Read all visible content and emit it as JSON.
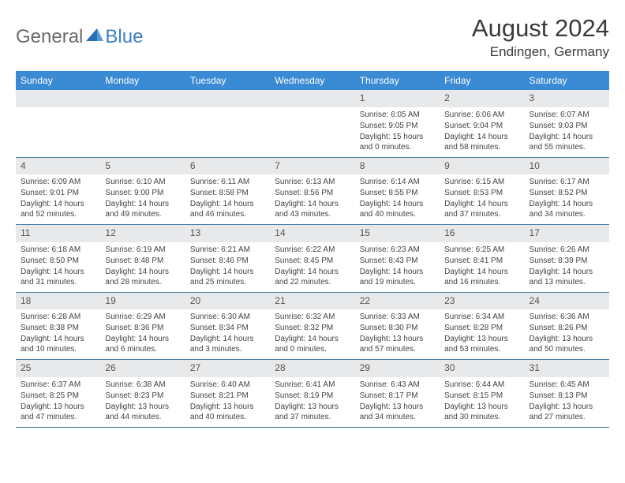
{
  "logo": {
    "part1": "General",
    "part2": "Blue"
  },
  "title": "August 2024",
  "location": "Endingen, Germany",
  "daynames": [
    "Sunday",
    "Monday",
    "Tuesday",
    "Wednesday",
    "Thursday",
    "Friday",
    "Saturday"
  ],
  "colors": {
    "header_bg": "#3b8bd4",
    "daynum_bg": "#e8e9ea",
    "border": "#4a7da8",
    "logo_blue": "#3b7fc4",
    "logo_gray": "#6b6b6b"
  },
  "weeks": [
    [
      {
        "n": "",
        "sunrise": "",
        "sunset": "",
        "daylight": ""
      },
      {
        "n": "",
        "sunrise": "",
        "sunset": "",
        "daylight": ""
      },
      {
        "n": "",
        "sunrise": "",
        "sunset": "",
        "daylight": ""
      },
      {
        "n": "",
        "sunrise": "",
        "sunset": "",
        "daylight": ""
      },
      {
        "n": "1",
        "sunrise": "Sunrise: 6:05 AM",
        "sunset": "Sunset: 9:05 PM",
        "daylight": "Daylight: 15 hours and 0 minutes."
      },
      {
        "n": "2",
        "sunrise": "Sunrise: 6:06 AM",
        "sunset": "Sunset: 9:04 PM",
        "daylight": "Daylight: 14 hours and 58 minutes."
      },
      {
        "n": "3",
        "sunrise": "Sunrise: 6:07 AM",
        "sunset": "Sunset: 9:03 PM",
        "daylight": "Daylight: 14 hours and 55 minutes."
      }
    ],
    [
      {
        "n": "4",
        "sunrise": "Sunrise: 6:09 AM",
        "sunset": "Sunset: 9:01 PM",
        "daylight": "Daylight: 14 hours and 52 minutes."
      },
      {
        "n": "5",
        "sunrise": "Sunrise: 6:10 AM",
        "sunset": "Sunset: 9:00 PM",
        "daylight": "Daylight: 14 hours and 49 minutes."
      },
      {
        "n": "6",
        "sunrise": "Sunrise: 6:11 AM",
        "sunset": "Sunset: 8:58 PM",
        "daylight": "Daylight: 14 hours and 46 minutes."
      },
      {
        "n": "7",
        "sunrise": "Sunrise: 6:13 AM",
        "sunset": "Sunset: 8:56 PM",
        "daylight": "Daylight: 14 hours and 43 minutes."
      },
      {
        "n": "8",
        "sunrise": "Sunrise: 6:14 AM",
        "sunset": "Sunset: 8:55 PM",
        "daylight": "Daylight: 14 hours and 40 minutes."
      },
      {
        "n": "9",
        "sunrise": "Sunrise: 6:15 AM",
        "sunset": "Sunset: 8:53 PM",
        "daylight": "Daylight: 14 hours and 37 minutes."
      },
      {
        "n": "10",
        "sunrise": "Sunrise: 6:17 AM",
        "sunset": "Sunset: 8:52 PM",
        "daylight": "Daylight: 14 hours and 34 minutes."
      }
    ],
    [
      {
        "n": "11",
        "sunrise": "Sunrise: 6:18 AM",
        "sunset": "Sunset: 8:50 PM",
        "daylight": "Daylight: 14 hours and 31 minutes."
      },
      {
        "n": "12",
        "sunrise": "Sunrise: 6:19 AM",
        "sunset": "Sunset: 8:48 PM",
        "daylight": "Daylight: 14 hours and 28 minutes."
      },
      {
        "n": "13",
        "sunrise": "Sunrise: 6:21 AM",
        "sunset": "Sunset: 8:46 PM",
        "daylight": "Daylight: 14 hours and 25 minutes."
      },
      {
        "n": "14",
        "sunrise": "Sunrise: 6:22 AM",
        "sunset": "Sunset: 8:45 PM",
        "daylight": "Daylight: 14 hours and 22 minutes."
      },
      {
        "n": "15",
        "sunrise": "Sunrise: 6:23 AM",
        "sunset": "Sunset: 8:43 PM",
        "daylight": "Daylight: 14 hours and 19 minutes."
      },
      {
        "n": "16",
        "sunrise": "Sunrise: 6:25 AM",
        "sunset": "Sunset: 8:41 PM",
        "daylight": "Daylight: 14 hours and 16 minutes."
      },
      {
        "n": "17",
        "sunrise": "Sunrise: 6:26 AM",
        "sunset": "Sunset: 8:39 PM",
        "daylight": "Daylight: 14 hours and 13 minutes."
      }
    ],
    [
      {
        "n": "18",
        "sunrise": "Sunrise: 6:28 AM",
        "sunset": "Sunset: 8:38 PM",
        "daylight": "Daylight: 14 hours and 10 minutes."
      },
      {
        "n": "19",
        "sunrise": "Sunrise: 6:29 AM",
        "sunset": "Sunset: 8:36 PM",
        "daylight": "Daylight: 14 hours and 6 minutes."
      },
      {
        "n": "20",
        "sunrise": "Sunrise: 6:30 AM",
        "sunset": "Sunset: 8:34 PM",
        "daylight": "Daylight: 14 hours and 3 minutes."
      },
      {
        "n": "21",
        "sunrise": "Sunrise: 6:32 AM",
        "sunset": "Sunset: 8:32 PM",
        "daylight": "Daylight: 14 hours and 0 minutes."
      },
      {
        "n": "22",
        "sunrise": "Sunrise: 6:33 AM",
        "sunset": "Sunset: 8:30 PM",
        "daylight": "Daylight: 13 hours and 57 minutes."
      },
      {
        "n": "23",
        "sunrise": "Sunrise: 6:34 AM",
        "sunset": "Sunset: 8:28 PM",
        "daylight": "Daylight: 13 hours and 53 minutes."
      },
      {
        "n": "24",
        "sunrise": "Sunrise: 6:36 AM",
        "sunset": "Sunset: 8:26 PM",
        "daylight": "Daylight: 13 hours and 50 minutes."
      }
    ],
    [
      {
        "n": "25",
        "sunrise": "Sunrise: 6:37 AM",
        "sunset": "Sunset: 8:25 PM",
        "daylight": "Daylight: 13 hours and 47 minutes."
      },
      {
        "n": "26",
        "sunrise": "Sunrise: 6:38 AM",
        "sunset": "Sunset: 8:23 PM",
        "daylight": "Daylight: 13 hours and 44 minutes."
      },
      {
        "n": "27",
        "sunrise": "Sunrise: 6:40 AM",
        "sunset": "Sunset: 8:21 PM",
        "daylight": "Daylight: 13 hours and 40 minutes."
      },
      {
        "n": "28",
        "sunrise": "Sunrise: 6:41 AM",
        "sunset": "Sunset: 8:19 PM",
        "daylight": "Daylight: 13 hours and 37 minutes."
      },
      {
        "n": "29",
        "sunrise": "Sunrise: 6:43 AM",
        "sunset": "Sunset: 8:17 PM",
        "daylight": "Daylight: 13 hours and 34 minutes."
      },
      {
        "n": "30",
        "sunrise": "Sunrise: 6:44 AM",
        "sunset": "Sunset: 8:15 PM",
        "daylight": "Daylight: 13 hours and 30 minutes."
      },
      {
        "n": "31",
        "sunrise": "Sunrise: 6:45 AM",
        "sunset": "Sunset: 8:13 PM",
        "daylight": "Daylight: 13 hours and 27 minutes."
      }
    ]
  ]
}
